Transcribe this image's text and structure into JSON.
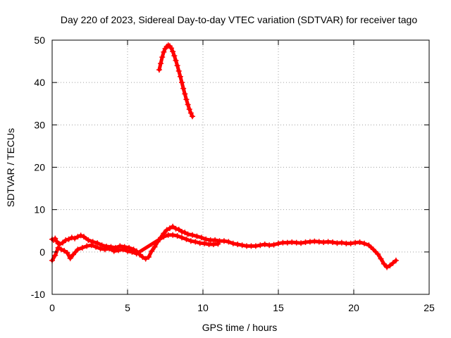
{
  "chart_data": {
    "type": "scatter",
    "title": "Day 220 of 2023, Sidereal Day-to-day VTEC variation (SDTVAR) for receiver tago",
    "xlabel": "GPS time / hours",
    "ylabel": "SDTVAR / TECUs",
    "xlim": [
      0,
      25
    ],
    "ylim": [
      -10,
      50
    ],
    "xticks": [
      0,
      5,
      10,
      15,
      20,
      25
    ],
    "yticks": [
      -10,
      0,
      10,
      20,
      30,
      40,
      50
    ],
    "xtick_labels": [
      "0",
      "5",
      "10",
      "15",
      "20",
      "25"
    ],
    "ytick_labels": [
      "-10",
      "0",
      "10",
      "20",
      "30",
      "40",
      "50"
    ],
    "grid": true,
    "marker": "plus",
    "series": [
      {
        "name": "main trace",
        "color": "#ff0000",
        "x": [
          0.0,
          0.1,
          0.2,
          0.3,
          0.4,
          0.5,
          0.7,
          0.9,
          1.1,
          1.3,
          1.5,
          1.7,
          1.9,
          2.1,
          2.4,
          2.7,
          3.0,
          3.3,
          3.6,
          3.9,
          4.2,
          4.5,
          4.8,
          5.1,
          5.4,
          5.6,
          5.8,
          6.0,
          6.2,
          6.4,
          6.6,
          6.8,
          7.0,
          7.2,
          7.4,
          7.6,
          7.8,
          8.0,
          8.2,
          8.4,
          8.6,
          8.8,
          9.0,
          9.3,
          9.6,
          9.9,
          10.2,
          10.5,
          10.8,
          11.1,
          11.4,
          11.7,
          12.0,
          12.3,
          12.6,
          12.9,
          13.2,
          13.5,
          13.8,
          14.1,
          14.4,
          14.7,
          15.0,
          15.3,
          15.6,
          15.9,
          16.2,
          16.5,
          16.8,
          17.1,
          17.4,
          17.7,
          18.0,
          18.3,
          18.6,
          18.9,
          19.2,
          19.5,
          19.8,
          20.1,
          20.4,
          20.7,
          21.0,
          21.3,
          21.6,
          21.8,
          22.0,
          22.2,
          22.4,
          22.6,
          22.8
        ],
        "y": [
          3.0,
          2.8,
          3.2,
          2.5,
          2.0,
          1.8,
          2.2,
          2.8,
          3.0,
          3.4,
          3.2,
          3.6,
          3.9,
          3.6,
          2.8,
          2.4,
          2.1,
          1.6,
          1.3,
          1.2,
          1.0,
          1.4,
          1.2,
          1.0,
          0.6,
          0.2,
          -0.6,
          -1.2,
          -1.6,
          -1.2,
          0.2,
          1.2,
          2.4,
          3.4,
          4.4,
          5.2,
          5.6,
          6.0,
          5.5,
          5.3,
          4.8,
          4.6,
          4.2,
          4.0,
          3.7,
          3.4,
          3.0,
          2.8,
          2.8,
          2.6,
          2.6,
          2.4,
          2.0,
          1.8,
          1.6,
          1.4,
          1.4,
          1.4,
          1.6,
          1.8,
          1.6,
          1.7,
          2.0,
          2.2,
          2.2,
          2.3,
          2.2,
          2.1,
          2.3,
          2.4,
          2.5,
          2.4,
          2.3,
          2.4,
          2.3,
          2.1,
          2.2,
          2.0,
          2.0,
          2.2,
          2.3,
          2.0,
          1.6,
          0.6,
          -0.5,
          -1.6,
          -2.8,
          -3.6,
          -3.2,
          -2.6,
          -2.0
        ]
      },
      {
        "name": "lower band",
        "color": "#ff0000",
        "x": [
          0.0,
          0.2,
          0.4,
          0.6,
          0.8,
          1.0,
          1.2,
          1.4,
          1.7,
          2.0,
          2.3,
          2.6,
          2.9,
          3.2,
          3.5,
          3.8,
          4.1,
          4.4,
          4.7,
          5.0,
          5.3,
          5.6,
          7.4,
          7.7,
          8.0,
          8.3,
          8.6,
          8.9,
          9.2,
          9.5,
          9.8,
          10.1,
          10.4,
          10.7,
          11.0
        ],
        "y": [
          -2.0,
          -0.8,
          1.0,
          0.6,
          0.3,
          -0.2,
          -1.5,
          -0.6,
          0.6,
          1.0,
          1.4,
          1.6,
          1.2,
          0.8,
          0.6,
          0.8,
          0.2,
          0.4,
          0.6,
          0.2,
          0.0,
          -0.4,
          3.6,
          4.0,
          4.0,
          3.8,
          3.4,
          3.0,
          2.6,
          2.4,
          2.1,
          2.0,
          1.8,
          1.8,
          1.9
        ]
      },
      {
        "name": "upper arc",
        "color": "#ff0000",
        "x": [
          7.1,
          7.2,
          7.3,
          7.4,
          7.5,
          7.6,
          7.7,
          7.8,
          7.9,
          8.0,
          8.1,
          8.2,
          8.3,
          8.4,
          8.5,
          8.6,
          8.7,
          8.8,
          8.9,
          9.0,
          9.1,
          9.2,
          9.3
        ],
        "y": [
          43.0,
          44.5,
          46.0,
          47.2,
          48.0,
          48.5,
          48.8,
          48.6,
          48.1,
          47.3,
          46.3,
          45.2,
          44.0,
          42.7,
          41.4,
          40.0,
          38.6,
          37.3,
          36.0,
          34.8,
          33.7,
          32.8,
          32.0
        ]
      }
    ]
  }
}
